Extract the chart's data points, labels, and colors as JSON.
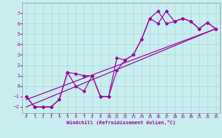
{
  "xlabel": "Windchill (Refroidissement éolien,°C)",
  "background_color": "#c8eef0",
  "grid_color": "#b0d8dc",
  "line_color": "#990099",
  "xlim": [
    -0.5,
    23.5
  ],
  "ylim": [
    -2.6,
    8.0
  ],
  "yticks": [
    -2,
    -1,
    0,
    1,
    2,
    3,
    4,
    5,
    6,
    7
  ],
  "xticks": [
    0,
    1,
    2,
    3,
    4,
    5,
    6,
    7,
    8,
    9,
    10,
    11,
    12,
    13,
    14,
    15,
    16,
    17,
    18,
    19,
    20,
    21,
    22,
    23
  ],
  "line1_x": [
    0,
    1,
    2,
    3,
    4,
    5,
    6,
    7,
    8,
    9,
    10,
    11,
    12,
    13,
    14,
    15,
    16,
    17,
    18,
    19,
    20,
    21,
    22,
    23
  ],
  "line1_y": [
    -1,
    -2,
    -2,
    -2,
    -1.3,
    1.3,
    1.2,
    1.0,
    1.0,
    -1.0,
    -1.0,
    2.7,
    2.5,
    3.0,
    4.5,
    6.5,
    7.2,
    6.0,
    6.2,
    6.5,
    6.2,
    5.5,
    6.1,
    5.5
  ],
  "line2_x": [
    0,
    1,
    2,
    3,
    4,
    5,
    6,
    7,
    8,
    9,
    10,
    11,
    12,
    13,
    14,
    15,
    16,
    17,
    18,
    19,
    20,
    21,
    22,
    23
  ],
  "line2_y": [
    -1,
    -2,
    -2,
    -2,
    -1.3,
    1.3,
    0.0,
    -0.5,
    1.0,
    -1.0,
    -1.0,
    1.5,
    2.5,
    3.0,
    4.5,
    6.5,
    6.0,
    7.2,
    6.2,
    6.5,
    6.2,
    5.5,
    6.1,
    5.5
  ],
  "line3_x": [
    0,
    23
  ],
  "line3_y": [
    -1.3,
    5.5
  ],
  "line4_x": [
    0,
    23
  ],
  "line4_y": [
    -2.0,
    5.5
  ]
}
